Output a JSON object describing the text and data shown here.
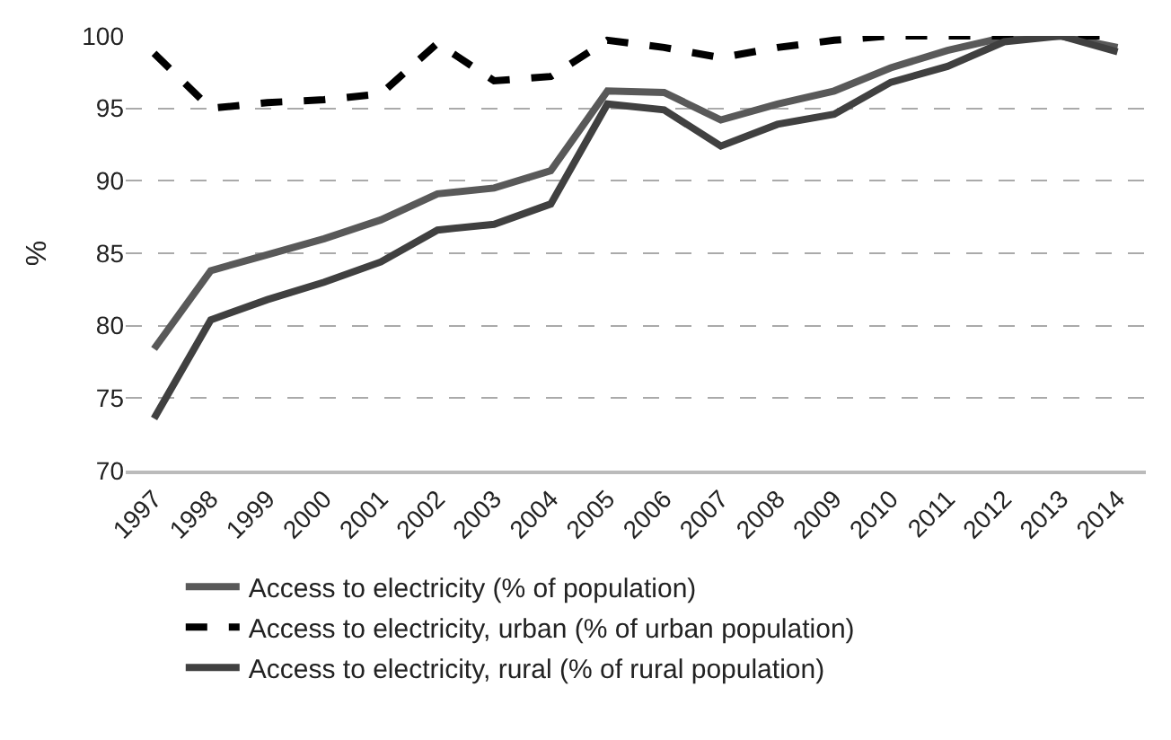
{
  "chart_data": {
    "type": "line",
    "ylabel": "%",
    "categories": [
      "1997",
      "1998",
      "1999",
      "2000",
      "2001",
      "2002",
      "2003",
      "2004",
      "2005",
      "2006",
      "2007",
      "2008",
      "2009",
      "2010",
      "2011",
      "2012",
      "2013",
      "2014"
    ],
    "series": [
      {
        "name": "Access to electricity (% of population)",
        "color": "#595959",
        "line_style": "solid",
        "values": [
          78.4,
          83.8,
          84.9,
          86.0,
          87.3,
          89.1,
          89.5,
          90.7,
          96.2,
          96.1,
          94.2,
          95.3,
          96.2,
          97.8,
          99.0,
          99.9,
          100,
          99.2
        ]
      },
      {
        "name": "Access to electricity, urban (% of urban population)",
        "color": "#000000",
        "line_style": "dashed",
        "values": [
          98.8,
          95.0,
          95.4,
          95.6,
          96.0,
          99.5,
          96.9,
          97.2,
          99.7,
          99.2,
          98.5,
          99.2,
          99.7,
          100,
          100,
          100,
          100,
          100
        ]
      },
      {
        "name": "Access to electricity, rural (% of rural population)",
        "color": "#404040",
        "line_style": "solid",
        "values": [
          73.6,
          80.4,
          81.8,
          83.0,
          84.4,
          86.6,
          87.0,
          88.4,
          95.3,
          94.9,
          92.4,
          93.9,
          94.6,
          96.8,
          97.9,
          99.6,
          100,
          98.9
        ]
      }
    ],
    "ylim": [
      70,
      100
    ],
    "yticks": [
      70,
      75,
      80,
      85,
      90,
      95,
      100
    ],
    "grid": "y",
    "legend": "bottom",
    "marker": "none"
  }
}
